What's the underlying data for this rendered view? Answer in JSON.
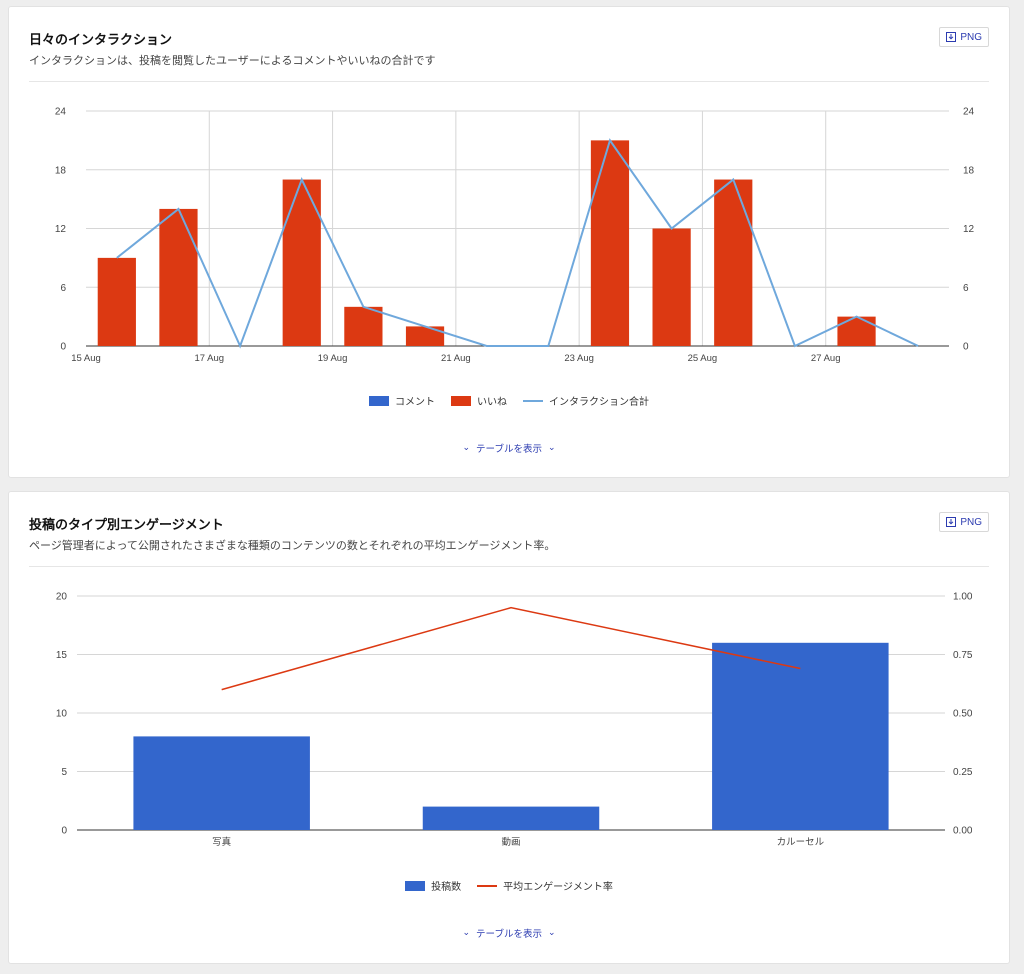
{
  "cards": [
    {
      "title": "日々のインタラクション",
      "subtitle": "インタラクションは、投稿を閲覧したユーザーによるコメントやいいねの合計です",
      "png_label": "PNG",
      "toggle_label": "テーブルを表示",
      "legend": [
        {
          "label": "コメント",
          "color": "#3366cc",
          "kind": "box"
        },
        {
          "label": "いいね",
          "color": "#dc3912",
          "kind": "box"
        },
        {
          "label": "インタラクション合計",
          "color": "#6fa8dc",
          "kind": "line"
        }
      ]
    },
    {
      "title": "投稿のタイプ別エンゲージメント",
      "subtitle": "ページ管理者によって公開されたさまざまな種類のコンテンツの数とそれぞれの平均エンゲージメント率。",
      "png_label": "PNG",
      "toggle_label": "テーブルを表示",
      "legend": [
        {
          "label": "投稿数",
          "color": "#3366cc",
          "kind": "box"
        },
        {
          "label": "平均エンゲージメント率",
          "color": "#dc3912",
          "kind": "line"
        }
      ]
    }
  ],
  "chart_data": [
    {
      "type": "bar",
      "x": [
        "15 Aug",
        "16 Aug",
        "17 Aug",
        "18 Aug",
        "19 Aug",
        "20 Aug",
        "21 Aug",
        "22 Aug",
        "23 Aug",
        "24 Aug",
        "25 Aug",
        "26 Aug",
        "27 Aug",
        "28 Aug"
      ],
      "x_tick_labels": [
        "15 Aug",
        "17 Aug",
        "19 Aug",
        "21 Aug",
        "23 Aug",
        "25 Aug",
        "27 Aug"
      ],
      "series": [
        {
          "name": "コメント",
          "kind": "bar",
          "values": [
            0,
            0,
            0,
            0,
            0,
            0,
            0,
            0,
            0,
            0,
            0,
            0,
            0,
            0
          ]
        },
        {
          "name": "いいね",
          "kind": "bar",
          "values": [
            9,
            14,
            0,
            17,
            4,
            2,
            0,
            0,
            21,
            12,
            17,
            0,
            3,
            0
          ]
        },
        {
          "name": "インタラクション合計",
          "kind": "line",
          "values": [
            9,
            14,
            0,
            17,
            4,
            2,
            0,
            0,
            21,
            12,
            17,
            0,
            3,
            0
          ]
        }
      ],
      "ylim": [
        0,
        24
      ],
      "yticks": [
        0,
        6,
        12,
        18,
        24
      ],
      "right_yticks": [
        0,
        6,
        12,
        18,
        24
      ],
      "grid": true,
      "legend_position": "bottom",
      "colors": {
        "comments": "#3366cc",
        "likes": "#dc3912",
        "total": "#6fa8dc"
      }
    },
    {
      "type": "bar",
      "categories": [
        "写真",
        "動画",
        "カルーセル"
      ],
      "series": [
        {
          "name": "投稿数",
          "kind": "bar",
          "axis": "left",
          "values": [
            8,
            2,
            16
          ]
        },
        {
          "name": "平均エンゲージメント率",
          "kind": "line",
          "axis": "right",
          "values": [
            0.6,
            0.95,
            0.69
          ]
        }
      ],
      "ylim": [
        0,
        20
      ],
      "yticks": [
        0,
        5,
        10,
        15,
        20
      ],
      "y2lim": [
        0,
        1
      ],
      "y2ticks": [
        "0.00",
        "0.25",
        "0.50",
        "0.75",
        "1.00"
      ],
      "grid": true,
      "legend_position": "bottom",
      "colors": {
        "posts": "#3366cc",
        "rate": "#dc3912"
      }
    }
  ]
}
